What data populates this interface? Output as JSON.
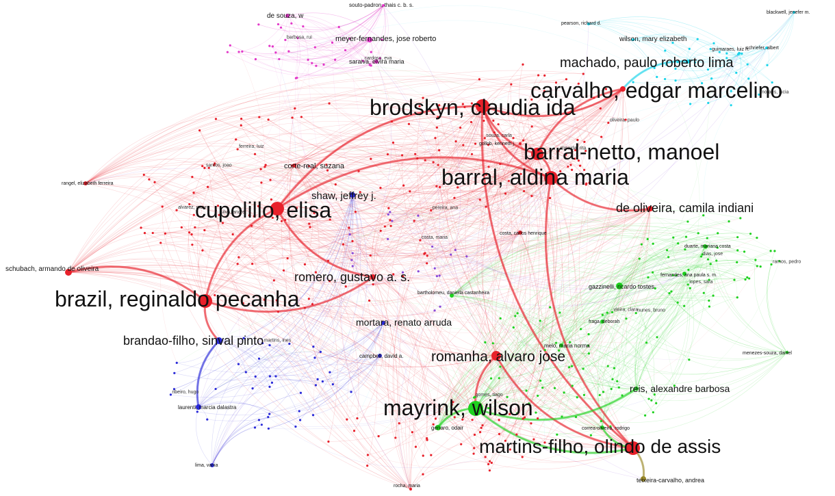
{
  "network": {
    "colors": {
      "red": "#e8202a",
      "green": "#1fd11f",
      "cyan": "#18d4ea",
      "blue": "#2a2ad8",
      "magenta": "#e236c8",
      "olive": "#9a8a2a",
      "yellow": "#f2e21a",
      "purple": "#8a4ad8"
    },
    "major_nodes": [
      {
        "id": "brodskyn",
        "label": "brodskyn, claudia ida",
        "cluster": "red"
      },
      {
        "id": "carvalho",
        "label": "carvalho, edgar marcelino",
        "cluster": "red"
      },
      {
        "id": "machado",
        "label": "machado, paulo roberto lima",
        "cluster": "cyan"
      },
      {
        "id": "barral_netto",
        "label": "barral-netto, manoel",
        "cluster": "red"
      },
      {
        "id": "barral",
        "label": "barral, aldina maria",
        "cluster": "red"
      },
      {
        "id": "oliveira",
        "label": "de oliveira, camila indiani",
        "cluster": "red"
      },
      {
        "id": "cupolillo",
        "label": "cupolillo, elisa",
        "cluster": "red"
      },
      {
        "id": "shaw",
        "label": "shaw, jeffrey j.",
        "cluster": "blue"
      },
      {
        "id": "romero",
        "label": "romero, gustavo a. s.",
        "cluster": "red"
      },
      {
        "id": "brazil",
        "label": "brazil, reginaldo pecanha",
        "cluster": "red"
      },
      {
        "id": "mortara",
        "label": "mortara, renato arruda",
        "cluster": "blue"
      },
      {
        "id": "brandao",
        "label": "brandao-filho, sinval pinto",
        "cluster": "blue"
      },
      {
        "id": "romanha",
        "label": "romanha, alvaro jose",
        "cluster": "red"
      },
      {
        "id": "mayrink",
        "label": "mayrink, wilson",
        "cluster": "green"
      },
      {
        "id": "reis",
        "label": "reis, alexandre barbosa",
        "cluster": "green"
      },
      {
        "id": "martins",
        "label": "martins-filho, olindo de assis",
        "cluster": "red"
      },
      {
        "id": "meyer",
        "label": "meyer-fernandes, jose roberto",
        "cluster": "magenta"
      },
      {
        "id": "wilson",
        "label": "wilson, mary elizabeth",
        "cluster": "cyan"
      },
      {
        "id": "corte",
        "label": "corte-real, suzana",
        "cluster": "red"
      },
      {
        "id": "souza",
        "label": "de souza, w",
        "cluster": "magenta"
      },
      {
        "id": "schubach",
        "label": "schubach, armando de oliveira",
        "cluster": "red"
      },
      {
        "id": "rangel",
        "label": "rangel, elizabeth ferreira",
        "cluster": "red"
      },
      {
        "id": "gazzinelli",
        "label": "gazzinelli, ricardo tostes",
        "cluster": "green"
      },
      {
        "id": "teixeira",
        "label": "teixeira-carvalho, andrea",
        "cluster": "olive"
      },
      {
        "id": "campbell",
        "label": "campbell, david a.",
        "cluster": "blue"
      },
      {
        "id": "souto",
        "label": "souto-padron, thais c. b. s.",
        "cluster": "magenta"
      },
      {
        "id": "saraiva",
        "label": "saraiva, elvira maria",
        "cluster": "magenta"
      },
      {
        "id": "genaro",
        "label": "genaro, odair",
        "cluster": "green"
      },
      {
        "id": "melo",
        "label": "melo, maria norma",
        "cluster": "green"
      },
      {
        "id": "laurenti",
        "label": "laurenti, marcia dalastra",
        "cluster": "blue"
      },
      {
        "id": "bartholomeu",
        "label": "bartholomeu, daniella castanheira",
        "cluster": "green"
      },
      {
        "id": "correa",
        "label": "correa-oliveira, rodrigo",
        "cluster": "green"
      },
      {
        "id": "fernandes",
        "label": "fernandes, ana paula s. m.",
        "cluster": "green"
      },
      {
        "id": "menezes",
        "label": "menezes-souza, daniel",
        "cluster": "green"
      },
      {
        "id": "gollob",
        "label": "gollob, kenneth j.",
        "cluster": "red"
      },
      {
        "id": "duarte",
        "label": "duarte, mariana costa",
        "cluster": "green"
      },
      {
        "id": "schriefer",
        "label": "schriefer, albert",
        "cluster": "cyan"
      },
      {
        "id": "guimaraes",
        "label": "guimaraes, luiz h.",
        "cluster": "cyan"
      },
      {
        "id": "blackwell",
        "label": "blackwell, jenefer m.",
        "cluster": "cyan"
      },
      {
        "id": "pearson",
        "label": "pearson, richard d.",
        "cluster": "cyan"
      },
      {
        "id": "costa",
        "label": "costa, carlos henrique",
        "cluster": "red"
      },
      {
        "id": "fraga",
        "label": "fraga, deborah",
        "cluster": "green"
      },
      {
        "id": "lima",
        "label": "lima, vania",
        "cluster": "blue"
      },
      {
        "id": "rocha",
        "label": "rocha, maria",
        "cluster": "red"
      }
    ],
    "minor_labels": [
      "alvarez, mauro",
      "silva, andre",
      "santos, joao",
      "pereira, ana",
      "ferreira, luiz",
      "costa, maria",
      "oliveira, paulo",
      "souza, carla",
      "almeida, rita",
      "ramos, pedro",
      "dias, jose",
      "lopes, sara",
      "nunes, bruno",
      "vieira, clara",
      "gomes, tiago",
      "moraes, lucia",
      "barbosa, rui",
      "cardoso, eva",
      "ribeiro, hugo",
      "martins, ines"
    ]
  }
}
